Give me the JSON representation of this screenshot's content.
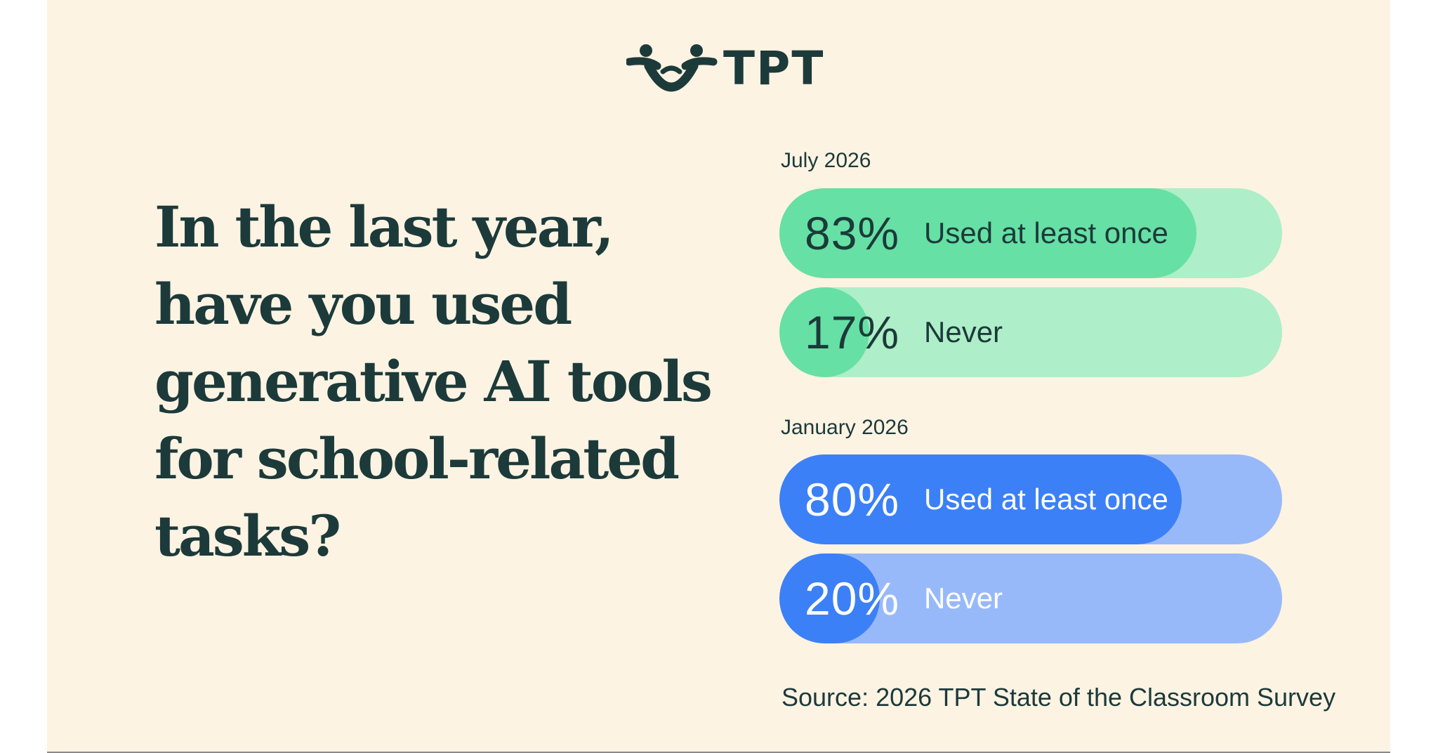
{
  "brand": {
    "name": "TPT",
    "logo_icon": "two-figures-holding-hands-icon",
    "color": "#1c3a3a"
  },
  "background_color": "#fdf3e3",
  "question": "In the last year, have you used generative AI tools for school-related tasks?",
  "chart_data": {
    "type": "bar",
    "orientation": "horizontal",
    "title": "In the last year, have you used generative AI tools for school-related tasks?",
    "unit": "%",
    "groups": [
      {
        "label": "July 2026",
        "fill_color": "#66e0a4",
        "track_color": "#aeeec8",
        "text_color": "#1c3a3a",
        "bars": [
          {
            "label": "Used at least once",
            "value": 83,
            "display": "83%"
          },
          {
            "label": "Never",
            "value": 17,
            "display": "17%"
          }
        ]
      },
      {
        "label": "January 2026",
        "fill_color": "#3c80f7",
        "track_color": "#98b9f9",
        "text_color": "#ffffff",
        "bars": [
          {
            "label": "Used at least once",
            "value": 80,
            "display": "80%"
          },
          {
            "label": "Never",
            "value": 20,
            "display": "20%"
          }
        ]
      }
    ],
    "source": "Source: 2026 TPT State of the Classroom Survey"
  }
}
